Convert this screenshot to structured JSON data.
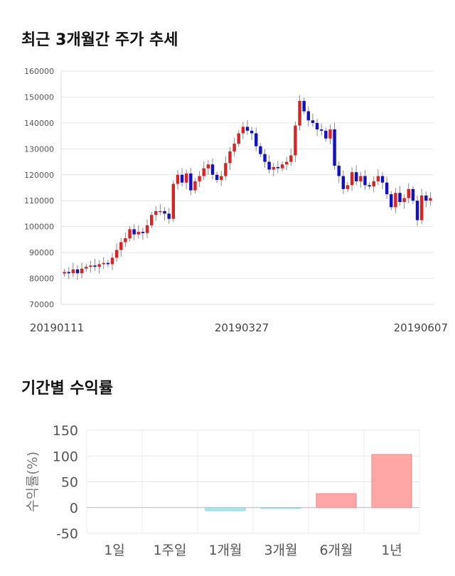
{
  "titles": {
    "price": "최근 3개월간 주가 추세",
    "returns": "기간별 수익률"
  },
  "colors": {
    "up": "#dd2222",
    "down": "#1010c8",
    "wick": "#888888",
    "positive_bar": "#ffa6a6",
    "negative_bar": "#a9e6ee"
  },
  "chart_data": [
    {
      "type": "candlestick",
      "ylim": [
        70000,
        160000
      ],
      "yticks": [
        70000,
        80000,
        90000,
        100000,
        110000,
        120000,
        130000,
        140000,
        150000,
        160000
      ],
      "xticks": [
        "20190111",
        "20190327",
        "20190607"
      ],
      "grid": true,
      "closes": [
        82500,
        82000,
        83500,
        82000,
        83800,
        84500,
        85000,
        84500,
        85500,
        86000,
        85500,
        88000,
        91000,
        94000,
        95500,
        99000,
        97000,
        98000,
        97500,
        100500,
        104500,
        106000,
        106000,
        105000,
        103000,
        116500,
        120000,
        117000,
        120500,
        114000,
        117500,
        119500,
        122500,
        124000,
        120000,
        118000,
        119500,
        124500,
        129000,
        132000,
        136000,
        138500,
        137000,
        136000,
        131000,
        128000,
        125000,
        122000,
        123000,
        122500,
        124000,
        125000,
        127500,
        139000,
        148500,
        144500,
        141000,
        140000,
        137500,
        137000,
        134000,
        137500,
        123500,
        119500,
        114500,
        116000,
        121000,
        117500,
        119500,
        116000,
        115500,
        117500,
        119500,
        117000,
        112500,
        107500,
        113000,
        109500,
        111000,
        114500,
        110000,
        102500,
        112000,
        110000,
        111000
      ]
    },
    {
      "type": "bar",
      "categories": [
        "1일",
        "1주일",
        "1개월",
        "3개월",
        "6개월",
        "1년"
      ],
      "values": [
        0,
        0,
        -6,
        -1,
        27,
        103
      ],
      "ylabel": "수익률(%)",
      "ylim": [
        -50,
        150
      ],
      "yticks": [
        -50,
        0,
        50,
        100,
        150
      ],
      "grid": true
    }
  ]
}
